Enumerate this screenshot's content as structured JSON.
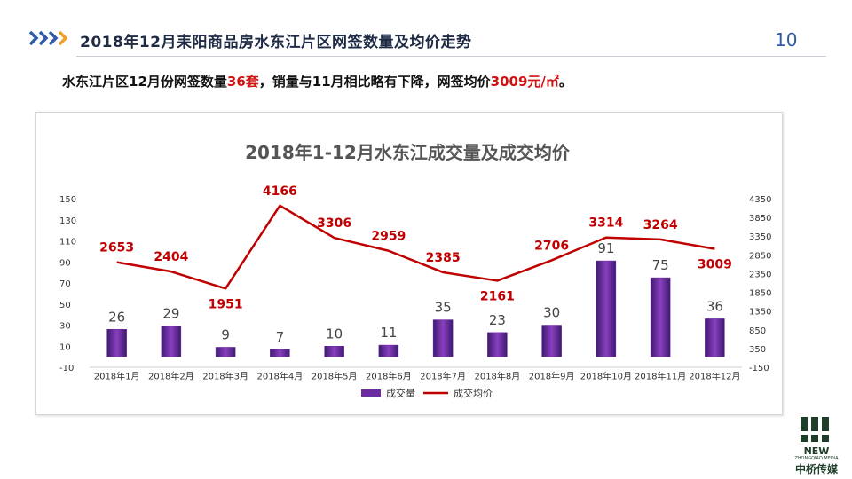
{
  "header": {
    "title": "2018年12月耒阳商品房水东江片区网签数量及均价走势",
    "page_number": "10"
  },
  "summary": {
    "part1": "水东江片区12月份网签数量",
    "count": "36套",
    "part2": "，销量与11月相比略有下降，网签均价",
    "price": "3009元/㎡",
    "part3": "。"
  },
  "colors": {
    "bar": "#6a2aa0",
    "line": "#c00000",
    "accent_blue": "#2e5aa7",
    "accent_orange": "#f0a02a"
  },
  "logo": {
    "new": "NEW",
    "sub": "ZHONGQIAO MEDIA",
    "cn": "中桥传媒"
  },
  "chart_data": {
    "type": "bar",
    "title": "2018年1-12月水东江成交量及成交均价",
    "categories": [
      "2018年1月",
      "2018年2月",
      "2018年3月",
      "2018年4月",
      "2018年5月",
      "2018年6月",
      "2018年7月",
      "2018年8月",
      "2018年9月",
      "2018年10月",
      "2018年11月",
      "2018年12月"
    ],
    "series": [
      {
        "name": "成交量",
        "type": "bar",
        "axis": "left",
        "values": [
          26,
          29,
          9,
          7,
          10,
          11,
          35,
          23,
          30,
          91,
          75,
          36
        ]
      },
      {
        "name": "成交均价",
        "type": "line",
        "axis": "right",
        "values": [
          2653,
          2404,
          1951,
          4166,
          3306,
          2959,
          2385,
          2161,
          2706,
          3314,
          3264,
          3009
        ]
      }
    ],
    "ylim_left": [
      -10,
      150
    ],
    "yticks_left": [
      "-10",
      "10",
      "30",
      "50",
      "70",
      "90",
      "110",
      "130",
      "150"
    ],
    "ylim_right": [
      -150,
      4350
    ],
    "yticks_right": [
      "-150",
      "350",
      "850",
      "1350",
      "1850",
      "2350",
      "2850",
      "3350",
      "3850",
      "4350"
    ],
    "legend": "bottom",
    "grid": false
  }
}
